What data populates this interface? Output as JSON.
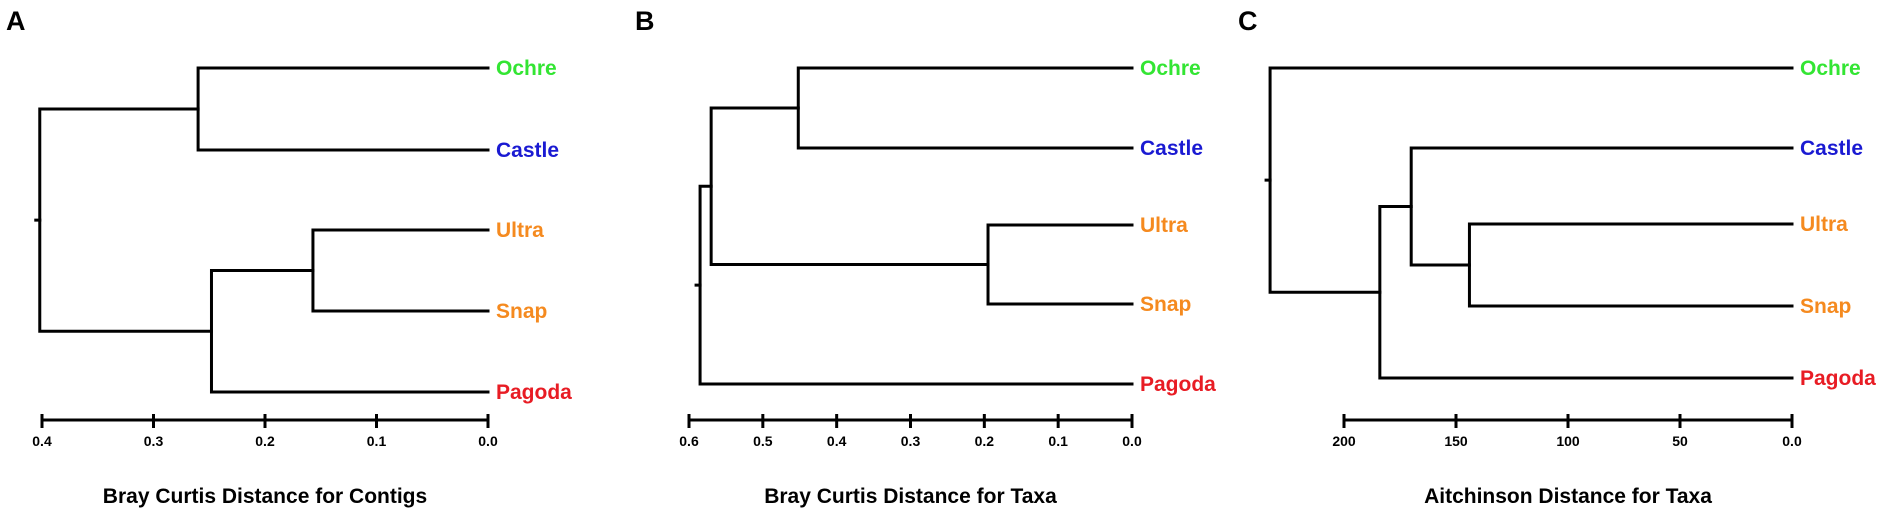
{
  "colors": {
    "Ochre": "#33e533",
    "Castle": "#1a1ad2",
    "Ultra": "#f58a1f",
    "Snap": "#f58a1f",
    "Pagoda": "#e81c24"
  },
  "chart_data": [
    {
      "type": "dendrogram",
      "panel": "A",
      "xlabel": "Bray Curtis Distance for Contigs",
      "xlim": [
        0.4,
        0.0
      ],
      "ticks": [
        0.4,
        0.3,
        0.2,
        0.1,
        0.0
      ],
      "tick_labels": [
        "0.4",
        "0.3",
        "0.2",
        "0.1",
        "0.0"
      ],
      "leaves": [
        "Ochre",
        "Castle",
        "Ultra",
        "Snap",
        "Pagoda"
      ],
      "merges": [
        {
          "a": "Ultra",
          "b": "Snap",
          "height": 0.157
        },
        {
          "a": "Ochre",
          "b": "Castle",
          "height": 0.26
        },
        {
          "a": "Ultra+Snap",
          "b": "Pagoda",
          "height": 0.248
        },
        {
          "a": "Ochre+Castle",
          "b": "Ultra+Snap+Pagoda",
          "height": 0.402
        }
      ]
    },
    {
      "type": "dendrogram",
      "panel": "B",
      "xlabel": "Bray Curtis Distance for Taxa",
      "xlim": [
        0.6,
        0.0
      ],
      "ticks": [
        0.6,
        0.5,
        0.4,
        0.3,
        0.2,
        0.1,
        0.0
      ],
      "tick_labels": [
        "0.6",
        "0.5",
        "0.4",
        "0.3",
        "0.2",
        "0.1",
        "0.0"
      ],
      "leaves": [
        "Ochre",
        "Castle",
        "Ultra",
        "Snap",
        "Pagoda"
      ],
      "merges": [
        {
          "a": "Ultra",
          "b": "Snap",
          "height": 0.195
        },
        {
          "a": "Ochre",
          "b": "Castle",
          "height": 0.452
        },
        {
          "a": "Ochre+Castle",
          "b": "Ultra+Snap",
          "height": 0.57
        },
        {
          "a": "Ochre+Castle+Ultra+Snap",
          "b": "Pagoda",
          "height": 0.585
        }
      ]
    },
    {
      "type": "dendrogram",
      "panel": "C",
      "xlabel": "Aitchinson Distance for Taxa",
      "xlim": [
        200,
        0
      ],
      "ticks": [
        200,
        150,
        100,
        50,
        0
      ],
      "tick_labels": [
        "200",
        "150",
        "100",
        "50",
        "0.0"
      ],
      "leaves": [
        "Ochre",
        "Castle",
        "Ultra",
        "Snap",
        "Pagoda"
      ],
      "merges": [
        {
          "a": "Ultra",
          "b": "Snap",
          "height": 144
        },
        {
          "a": "Castle",
          "b": "Ultra+Snap",
          "height": 170
        },
        {
          "a": "Castle+Ultra+Snap",
          "b": "Pagoda",
          "height": 184
        },
        {
          "a": "Ochre",
          "b": "Castle+Ultra+Snap+Pagoda",
          "height": 233
        }
      ]
    }
  ]
}
